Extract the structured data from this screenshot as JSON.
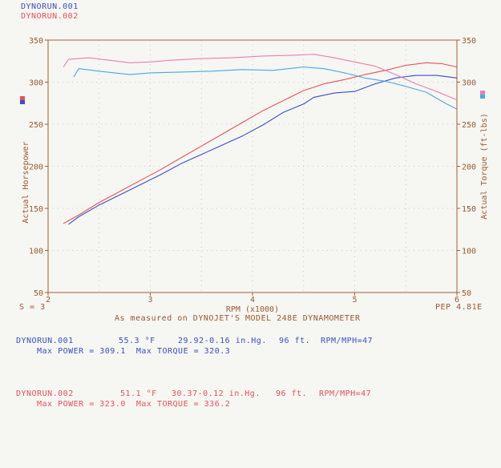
{
  "legend": {
    "run1": "DYNORUN.001",
    "run2": "DYNORUN.002"
  },
  "footer": {
    "smoothing": "S = 3",
    "caption": "As measured on DYNOJET'S MODEL 248E DYNAMOMETER",
    "pep": "PEP 4.81E"
  },
  "runs": [
    {
      "name": "DYNORUN.001",
      "temp": "55.3 °F",
      "baro": "29.92-0.16 in.Hg.",
      "elev": "96 ft.",
      "rpm_mph": "RPM/MPH=47",
      "summary": "Max POWER = 309.1  Max TORQUE = 320.3"
    },
    {
      "name": "DYNORUN.002",
      "temp": "51.1 °F",
      "baro": "30.37-0.12 in.Hg.",
      "elev": "96 ft.",
      "rpm_mph": "RPM/MPH=47",
      "summary": "Max POWER = 323.0  Max TORQUE = 336.2"
    }
  ],
  "colors": {
    "run1": "#3a4fc8",
    "run2": "#e8525a",
    "run1_torque": "#4aa8e0",
    "run2_torque": "#e880b0",
    "axis": "#a0603a",
    "axis_text": "#9a5a30",
    "grid": "#c0c0c0"
  },
  "chart_data": {
    "type": "line",
    "title": "",
    "xlabel": "RPM (x1000)",
    "ylabel_left": "Actual Horsepower",
    "ylabel_right": "Actual Torque (ft-lbs)",
    "xlim": [
      2,
      6
    ],
    "ylim": [
      50,
      350
    ],
    "y2lim": [
      50,
      350
    ],
    "xticks": [
      "2",
      "3",
      "4",
      "5",
      "6"
    ],
    "yticks": [
      "50",
      "100",
      "150",
      "200",
      "250",
      "300",
      "350"
    ],
    "grid": true,
    "series": [
      {
        "name": "DYNORUN.001",
        "measure": "horsepower",
        "axis": "left",
        "x": [
          2.2,
          2.3,
          2.5,
          2.7,
          2.9,
          3.1,
          3.3,
          3.5,
          3.7,
          3.9,
          4.1,
          4.3,
          4.5,
          4.6,
          4.8,
          5.0,
          5.2,
          5.4,
          5.6,
          5.8,
          6.0
        ],
        "y": [
          131,
          140,
          154,
          166,
          178,
          190,
          203,
          214,
          225,
          236,
          249,
          264,
          274,
          282,
          287,
          289,
          298,
          305,
          308,
          308,
          305
        ]
      },
      {
        "name": "DYNORUN.002",
        "measure": "horsepower",
        "axis": "left",
        "x": [
          2.15,
          2.3,
          2.5,
          2.7,
          2.9,
          3.1,
          3.3,
          3.5,
          3.7,
          3.9,
          4.1,
          4.3,
          4.5,
          4.7,
          4.9,
          5.1,
          5.3,
          5.5,
          5.7,
          5.85,
          6.0
        ],
        "y": [
          132,
          142,
          157,
          170,
          183,
          196,
          210,
          224,
          238,
          252,
          266,
          278,
          290,
          298,
          303,
          309,
          314,
          320,
          323,
          322,
          318
        ]
      },
      {
        "name": "DYNORUN.001",
        "measure": "torque",
        "axis": "right",
        "x": [
          2.25,
          2.3,
          2.5,
          2.8,
          3.0,
          3.3,
          3.6,
          3.9,
          4.2,
          4.5,
          4.7,
          4.9,
          5.1,
          5.3,
          5.5,
          5.7,
          5.9,
          6.0
        ],
        "y": [
          306,
          316,
          313,
          309,
          311,
          312,
          313,
          315,
          314,
          318,
          316,
          311,
          305,
          301,
          295,
          288,
          274,
          268
        ]
      },
      {
        "name": "DYNORUN.002",
        "measure": "torque",
        "axis": "right",
        "x": [
          2.15,
          2.2,
          2.4,
          2.6,
          2.8,
          3.0,
          3.2,
          3.5,
          3.8,
          4.1,
          4.4,
          4.6,
          4.8,
          5.0,
          5.2,
          5.4,
          5.6,
          5.8,
          6.0
        ],
        "y": [
          318,
          327,
          329,
          326,
          323,
          324,
          326,
          328,
          329,
          331,
          332,
          333,
          329,
          324,
          319,
          309,
          298,
          289,
          279
        ]
      }
    ]
  }
}
